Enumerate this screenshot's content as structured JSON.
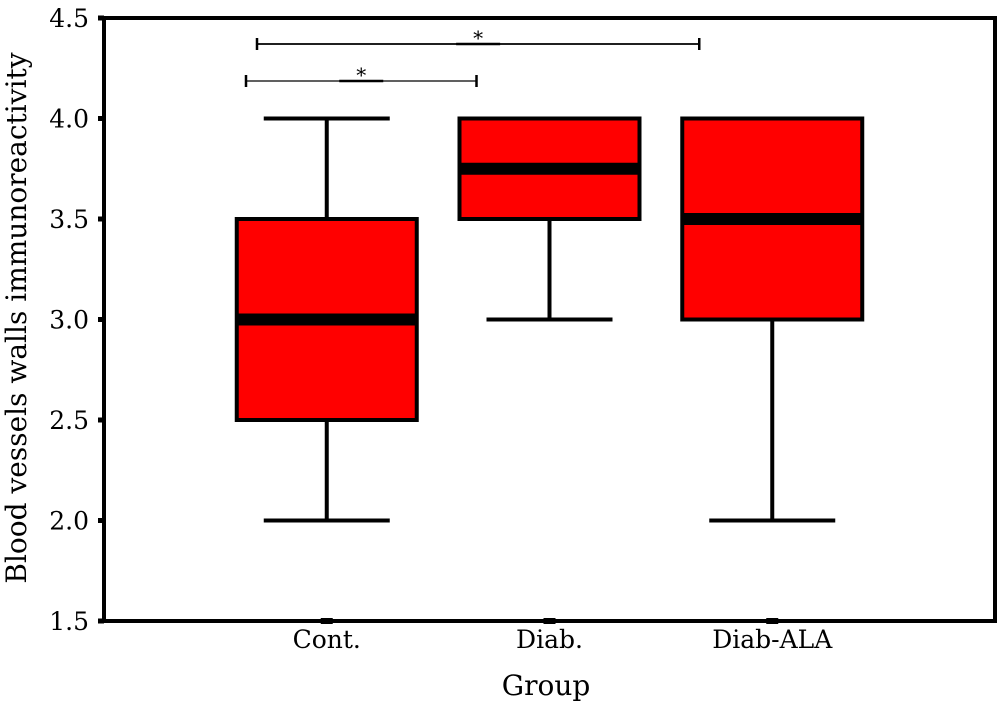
{
  "chart_data": {
    "type": "boxplot",
    "xlabel": "Group",
    "ylabel": "Blood vessels walls immunoreactivity",
    "ylim": [
      1.5,
      4.5
    ],
    "yticks": [
      1.5,
      2.0,
      2.5,
      3.0,
      3.5,
      4.0,
      4.5
    ],
    "ytick_labels": [
      "1.5",
      "2.0",
      "2.5",
      "3.0",
      "3.5",
      "4.0",
      "4.5"
    ],
    "categories": [
      "Cont.",
      "Diab.",
      "Diab-ALA"
    ],
    "boxes": [
      {
        "label": "Cont.",
        "min": 2.0,
        "q1": 2.5,
        "median": 3.0,
        "q3": 3.5,
        "max": 4.0
      },
      {
        "label": "Diab.",
        "min": 3.0,
        "q1": 3.5,
        "median": 3.75,
        "q3": 4.0,
        "max": 4.0
      },
      {
        "label": "Diab-ALA",
        "min": 2.0,
        "q1": 3.0,
        "median": 3.5,
        "q3": 4.0,
        "max": 4.0
      }
    ],
    "significance": [
      {
        "from": "Cont.",
        "to": "Diab.",
        "label": "*"
      },
      {
        "from": "Cont.",
        "to": "Diab-ALA",
        "label": "*"
      }
    ],
    "box_color": "#ff0000",
    "grid": false,
    "legend": "none"
  }
}
